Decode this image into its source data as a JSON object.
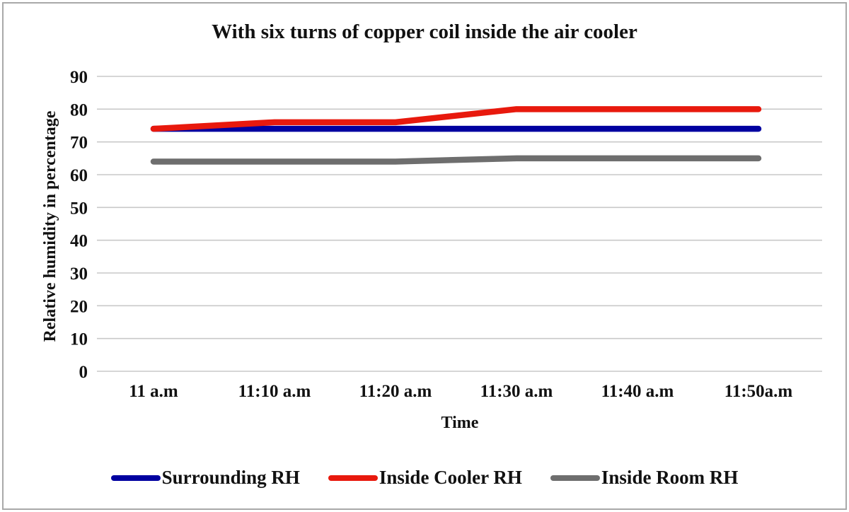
{
  "chart_data": {
    "type": "line",
    "title": "With six  turns of copper coil inside the air cooler",
    "xlabel": "Time",
    "ylabel": "Relative humidity in percentage",
    "categories": [
      "11 a.m",
      "11:10 a.m",
      "11:20 a.m",
      "11:30 a.m",
      "11:40 a.m",
      "11:50a.m"
    ],
    "series": [
      {
        "name": "Surrounding RH",
        "color": "#0000A0",
        "values": [
          74,
          74,
          74,
          74,
          74,
          74
        ]
      },
      {
        "name": "Inside Cooler RH",
        "color": "#E8190D",
        "values": [
          74,
          76,
          76,
          80,
          80,
          80
        ]
      },
      {
        "name": "Inside Room RH",
        "color": "#6E6E6E",
        "values": [
          64,
          64,
          64,
          65,
          65,
          65
        ]
      }
    ],
    "ylim": [
      0,
      90
    ],
    "ytick_step": 10,
    "grid": "horizontal",
    "gridline_color": "#C9C9C9",
    "legend_position": "bottom"
  }
}
